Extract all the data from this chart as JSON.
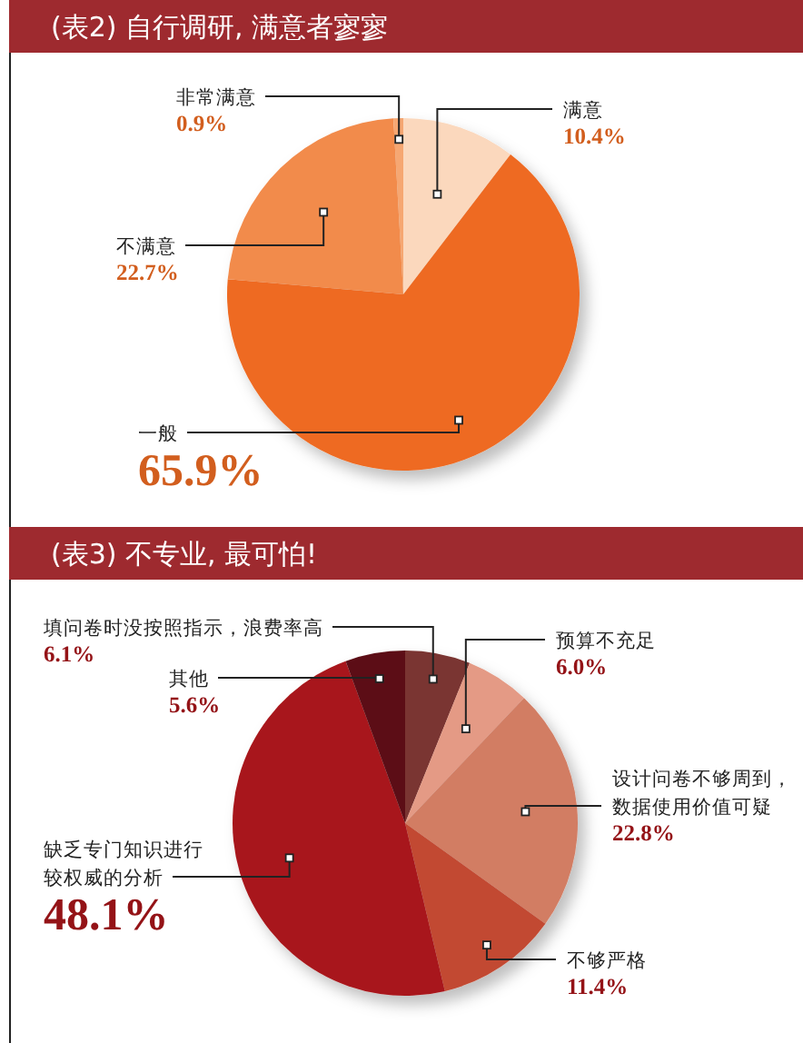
{
  "chart_data": [
    {
      "type": "pie",
      "title": "(表2) 自行调研, 满意者寥寥",
      "categories": [
        "满意",
        "一般",
        "不满意",
        "非常满意"
      ],
      "values": [
        10.4,
        65.9,
        22.7,
        0.9
      ],
      "colors": [
        "#fbd8bd",
        "#ee6a22",
        "#f28b4c",
        "#f6a772"
      ],
      "value_labels": [
        "10.4%",
        "65.9%",
        "22.7%",
        "0.9%"
      ]
    },
    {
      "type": "pie",
      "title": "(表3) 不专业, 最可怕!",
      "categories": [
        "填问卷时没按照指示，浪费率高",
        "预算不充足",
        "设计问卷不够周到，数据使用价值可疑",
        "不够严格",
        "缺乏专门知识进行较权威的分析",
        "其他"
      ],
      "values": [
        6.1,
        6.0,
        22.8,
        11.4,
        48.1,
        5.6
      ],
      "colors": [
        "#7a3430",
        "#e49a85",
        "#d27d64",
        "#c24a33",
        "#a8161a",
        "#5c1016"
      ],
      "value_labels": [
        "6.1%",
        "6.0%",
        "22.8%",
        "11.4%",
        "48.1%",
        "5.6%"
      ]
    }
  ]
}
